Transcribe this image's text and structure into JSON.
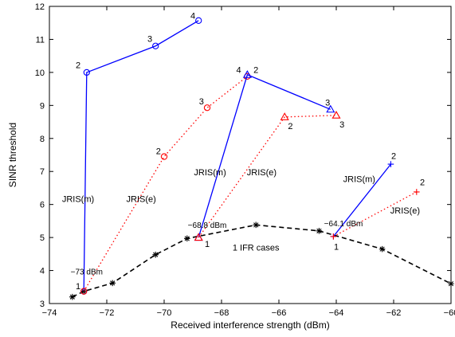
{
  "chart_data": {
    "type": "line",
    "title": "",
    "xlabel": "Received interference strength (dBm)",
    "ylabel": "SINR threshold",
    "xlim": [
      -74,
      -60
    ],
    "ylim": [
      3,
      12
    ],
    "xticks": [
      -74,
      -72,
      -70,
      -68,
      -66,
      -64,
      -62,
      -60
    ],
    "yticks": [
      3,
      4,
      5,
      6,
      7,
      8,
      9,
      10,
      11,
      12
    ],
    "grid": false,
    "legend": "none",
    "series": [
      {
        "name": "1 IFR cases",
        "color": "#000000",
        "line": "dashed",
        "marker": "asterisk",
        "points": [
          [
            -73.2,
            3.2
          ],
          [
            -72.8,
            3.37
          ],
          [
            -71.8,
            3.62
          ],
          [
            -70.3,
            4.48
          ],
          [
            -69.2,
            4.97
          ],
          [
            -66.8,
            5.38
          ],
          [
            -64.6,
            5.2
          ],
          [
            -62.4,
            4.65
          ],
          [
            -60.0,
            3.6
          ]
        ]
      },
      {
        "name": "JRIS(m)",
        "color": "#0000ff",
        "line": "solid",
        "marker": "circle",
        "points": [
          [
            -72.8,
            3.37
          ],
          [
            -72.7,
            10.0
          ],
          [
            -70.3,
            10.8
          ],
          [
            -68.8,
            11.57
          ]
        ]
      },
      {
        "name": "JRIS(e)",
        "color": "#ff0000",
        "line": "dotted",
        "marker": "circle",
        "points": [
          [
            -72.8,
            3.37
          ],
          [
            -70.0,
            7.45
          ],
          [
            -68.5,
            8.93
          ],
          [
            -67.1,
            9.88
          ]
        ]
      },
      {
        "name": "JRIS(m)",
        "color": "#0000ff",
        "line": "solid",
        "marker": "triangle",
        "points": [
          [
            -68.8,
            5.0
          ],
          [
            -67.1,
            9.93
          ],
          [
            -64.2,
            8.88
          ]
        ]
      },
      {
        "name": "JRIS(e)",
        "color": "#ff0000",
        "line": "dotted",
        "marker": "triangle",
        "points": [
          [
            -68.8,
            5.0
          ],
          [
            -65.8,
            8.65
          ],
          [
            -64.0,
            8.7
          ]
        ]
      },
      {
        "name": "JRIS(m)",
        "color": "#0000ff",
        "line": "solid",
        "marker": "plus",
        "points": [
          [
            -64.1,
            5.03
          ],
          [
            -62.1,
            7.22
          ]
        ]
      },
      {
        "name": "JRIS(e)",
        "color": "#ff0000",
        "line": "dotted",
        "marker": "plus",
        "points": [
          [
            -64.1,
            5.03
          ],
          [
            -61.2,
            6.38
          ]
        ]
      }
    ],
    "annotations": [
      {
        "text": "1",
        "x": -73.0,
        "y": 3.5
      },
      {
        "text": "2",
        "x": -73.0,
        "y": 10.2
      },
      {
        "text": "3",
        "x": -70.5,
        "y": 11.0
      },
      {
        "text": "4",
        "x": -69.0,
        "y": 11.7
      },
      {
        "text": "2",
        "x": -70.2,
        "y": 7.6
      },
      {
        "text": "3",
        "x": -68.7,
        "y": 9.1
      },
      {
        "text": "4",
        "x": -67.4,
        "y": 10.05
      },
      {
        "text": "2",
        "x": -66.8,
        "y": 10.05
      },
      {
        "text": "3",
        "x": -64.3,
        "y": 9.07
      },
      {
        "text": "2",
        "x": -65.6,
        "y": 8.35
      },
      {
        "text": "3",
        "x": -63.8,
        "y": 8.4
      },
      {
        "text": "1",
        "x": -68.5,
        "y": 4.78
      },
      {
        "text": "1",
        "x": -64.0,
        "y": 4.7
      },
      {
        "text": "2",
        "x": -62.0,
        "y": 7.45
      },
      {
        "text": "2",
        "x": -61.0,
        "y": 6.65
      },
      {
        "text": "JRIS(m)",
        "x": -73.0,
        "y": 6.15
      },
      {
        "text": "JRIS(e)",
        "x": -70.8,
        "y": 6.15
      },
      {
        "text": "JRIS(m)",
        "x": -68.4,
        "y": 6.95
      },
      {
        "text": "JRIS(e)",
        "x": -66.6,
        "y": 6.95
      },
      {
        "text": "JRIS(m)",
        "x": -63.2,
        "y": 6.75
      },
      {
        "text": "JRIS(e)",
        "x": -61.6,
        "y": 5.8
      },
      {
        "text": "−73 dBm",
        "x": -72.7,
        "y": 3.95
      },
      {
        "text": "−68.8 dBm",
        "x": -68.5,
        "y": 5.35
      },
      {
        "text": "−64.1 dBm",
        "x": -63.75,
        "y": 5.4
      },
      {
        "text": "1 IFR cases",
        "x": -66.8,
        "y": 4.68
      }
    ]
  }
}
